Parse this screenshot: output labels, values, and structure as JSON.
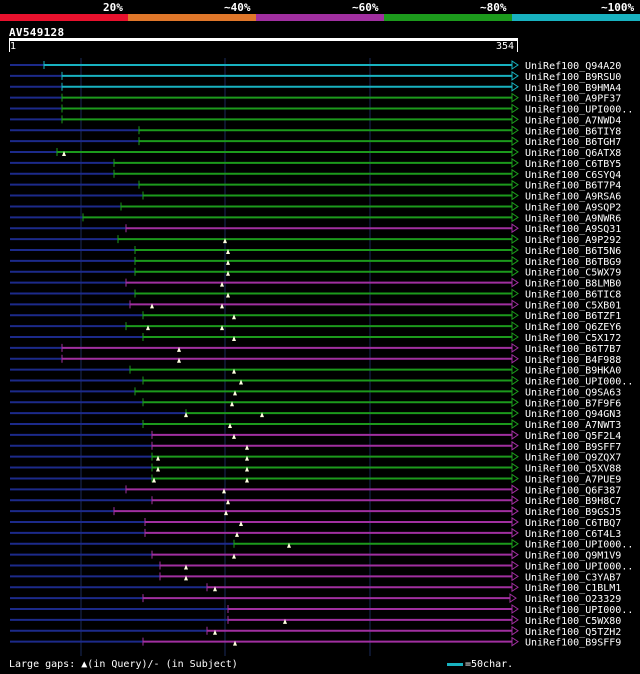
{
  "legend": {
    "labels": [
      "20%",
      "~40%",
      "~60%",
      "~80%",
      "~100%"
    ],
    "colors": [
      "#e8112d",
      "#e0772a",
      "#a12fa0",
      "#1c9a1c",
      "#18b2c0"
    ]
  },
  "query": {
    "id": "AV549128",
    "start": "1",
    "end": "354"
  },
  "hits": [
    {
      "name": "UniRef100_Q94A20",
      "color": "#18b2c0",
      "start": 44,
      "markers": []
    },
    {
      "name": "UniRef100_B9RSU0",
      "color": "#18b2c0",
      "start": 62,
      "markers": []
    },
    {
      "name": "UniRef100_B9HMA4",
      "color": "#18b2c0",
      "start": 62,
      "markers": []
    },
    {
      "name": "UniRef100_A9PF37",
      "color": "#1c9a1c",
      "start": 62,
      "markers": []
    },
    {
      "name": "UniRef100_UPI000..",
      "color": "#1c9a1c",
      "start": 62,
      "markers": []
    },
    {
      "name": "UniRef100_A7NWD4",
      "color": "#1c9a1c",
      "start": 62,
      "markers": []
    },
    {
      "name": "UniRef100_B6TIY8",
      "color": "#1c9a1c",
      "start": 139,
      "markers": []
    },
    {
      "name": "UniRef100_B6TGH7",
      "color": "#1c9a1c",
      "start": 139,
      "markers": []
    },
    {
      "name": "UniRef100_Q6ATX8",
      "color": "#1c9a1c",
      "start": 57,
      "markers": [
        64
      ]
    },
    {
      "name": "UniRef100_C6TBY5",
      "color": "#1c9a1c",
      "start": 114,
      "markers": []
    },
    {
      "name": "UniRef100_C6SYQ4",
      "color": "#1c9a1c",
      "start": 114,
      "markers": []
    },
    {
      "name": "UniRef100_B6T7P4",
      "color": "#1c9a1c",
      "start": 139,
      "markers": []
    },
    {
      "name": "UniRef100_A9RSA6",
      "color": "#1c9a1c",
      "start": 143,
      "markers": []
    },
    {
      "name": "UniRef100_A9SQP2",
      "color": "#1c9a1c",
      "start": 121,
      "markers": []
    },
    {
      "name": "UniRef100_A9NWR6",
      "color": "#1c9a1c",
      "start": 83,
      "markers": []
    },
    {
      "name": "UniRef100_A9SQ31",
      "color": "#a12fa0",
      "start": 126,
      "markers": []
    },
    {
      "name": "UniRef100_A9P292",
      "color": "#1c9a1c",
      "start": 118,
      "markers": [
        225
      ]
    },
    {
      "name": "UniRef100_B6T5N6",
      "color": "#1c9a1c",
      "start": 135,
      "markers": [
        228
      ]
    },
    {
      "name": "UniRef100_B6TBG9",
      "color": "#1c9a1c",
      "start": 135,
      "markers": [
        228
      ]
    },
    {
      "name": "UniRef100_C5WX79",
      "color": "#1c9a1c",
      "start": 135,
      "markers": [
        228
      ]
    },
    {
      "name": "UniRef100_B8LMB0",
      "color": "#a12fa0",
      "start": 126,
      "markers": [
        222
      ]
    },
    {
      "name": "UniRef100_B6TIC8",
      "color": "#1c9a1c",
      "start": 135,
      "markers": [
        228
      ]
    },
    {
      "name": "UniRef100_C5XB01",
      "color": "#a12fa0",
      "start": 130,
      "markers": [
        152,
        222
      ]
    },
    {
      "name": "UniRef100_B6TZF1",
      "color": "#1c9a1c",
      "start": 143,
      "markers": [
        234
      ]
    },
    {
      "name": "UniRef100_Q6ZEY6",
      "color": "#1c9a1c",
      "start": 126,
      "markers": [
        148,
        222
      ]
    },
    {
      "name": "UniRef100_C5X172",
      "color": "#1c9a1c",
      "start": 143,
      "markers": [
        234
      ]
    },
    {
      "name": "UniRef100_B6T7B7",
      "color": "#a12fa0",
      "start": 62,
      "markers": [
        179
      ]
    },
    {
      "name": "UniRef100_B4F988",
      "color": "#a12fa0",
      "start": 62,
      "markers": [
        179
      ]
    },
    {
      "name": "UniRef100_B9HKA0",
      "color": "#1c9a1c",
      "start": 130,
      "markers": [
        234
      ]
    },
    {
      "name": "UniRef100_UPI000..",
      "color": "#1c9a1c",
      "start": 143,
      "markers": [
        241
      ]
    },
    {
      "name": "UniRef100_Q9SA63",
      "color": "#1c9a1c",
      "start": 135,
      "markers": [
        235
      ]
    },
    {
      "name": "UniRef100_B7F9F6",
      "color": "#1c9a1c",
      "start": 143,
      "markers": [
        232
      ]
    },
    {
      "name": "UniRef100_Q94GN3",
      "color": "#1c9a1c",
      "start": 186,
      "markers": [
        186,
        262
      ]
    },
    {
      "name": "UniRef100_A7NWT3",
      "color": "#1c9a1c",
      "start": 143,
      "markers": [
        230
      ]
    },
    {
      "name": "UniRef100_Q5F2L4",
      "color": "#a12fa0",
      "start": 152,
      "markers": [
        234
      ]
    },
    {
      "name": "UniRef100_B9SFF7",
      "color": "#a12fa0",
      "start": 152,
      "markers": [
        247
      ]
    },
    {
      "name": "UniRef100_Q9ZQX7",
      "color": "#1c9a1c",
      "start": 152,
      "markers": [
        158,
        247
      ]
    },
    {
      "name": "UniRef100_Q5XV88",
      "color": "#1c9a1c",
      "start": 152,
      "markers": [
        158,
        247
      ]
    },
    {
      "name": "UniRef100_A7PUE9",
      "color": "#1c9a1c",
      "start": 152,
      "markers": [
        154,
        247
      ]
    },
    {
      "name": "UniRef100_Q6F387",
      "color": "#a12fa0",
      "start": 126,
      "markers": [
        224
      ]
    },
    {
      "name": "UniRef100_B9H8C7",
      "color": "#a12fa0",
      "start": 152,
      "markers": [
        228
      ]
    },
    {
      "name": "UniRef100_B9GSJ5",
      "color": "#a12fa0",
      "start": 114,
      "markers": [
        226
      ]
    },
    {
      "name": "UniRef100_C6TBQ7",
      "color": "#a12fa0",
      "start": 145,
      "markers": [
        241
      ]
    },
    {
      "name": "UniRef100_C6T4L3",
      "color": "#a12fa0",
      "start": 145,
      "markers": [
        237
      ]
    },
    {
      "name": "UniRef100_UPI000..",
      "color": "#1c9a1c",
      "start": 234,
      "markers": [
        289
      ]
    },
    {
      "name": "UniRef100_Q9M1V9",
      "color": "#a12fa0",
      "start": 152,
      "markers": [
        234
      ]
    },
    {
      "name": "UniRef100_UPI000..",
      "color": "#a12fa0",
      "start": 160,
      "markers": [
        186
      ]
    },
    {
      "name": "UniRef100_C3YAB7",
      "color": "#a12fa0",
      "start": 160,
      "markers": [
        186
      ]
    },
    {
      "name": "UniRef100_C1BLM1",
      "color": "#a12fa0",
      "start": 207,
      "markers": [
        215
      ]
    },
    {
      "name": "UniRef100_O23329",
      "color": "#a12fa0",
      "start": 143,
      "markers": [],
      "end_short": 510
    },
    {
      "name": "UniRef100_UPI000..",
      "color": "#a12fa0",
      "start": 228,
      "markers": []
    },
    {
      "name": "UniRef100_C5WX80",
      "color": "#a12fa0",
      "start": 228,
      "markers": [
        285
      ]
    },
    {
      "name": "UniRef100_Q5TZH2",
      "color": "#a12fa0",
      "start": 207,
      "markers": [
        215
      ]
    },
    {
      "name": "UniRef100_B9SFF9",
      "color": "#a12fa0",
      "start": 143,
      "markers": [
        235
      ]
    }
  ],
  "footer": {
    "gap_text": "Large gaps:",
    "query_gap": "(in Query)/",
    "subject_gap": "- (in Subject)",
    "scale_text": "=50char."
  }
}
